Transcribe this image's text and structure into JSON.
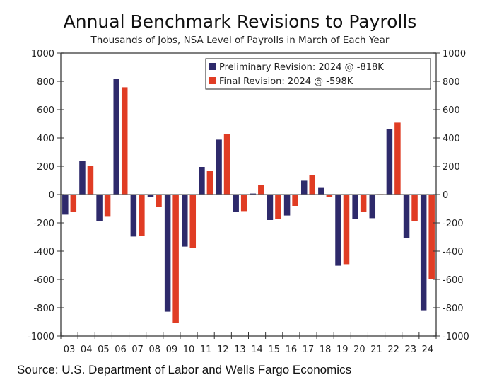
{
  "chart_data": {
    "type": "bar",
    "title": "Annual Benchmark Revisions to Payrolls",
    "subtitle": "Thousands of Jobs, NSA Level of Payrolls in March of Each Year",
    "xlabel": "",
    "ylabel": "",
    "ylim": [
      -1000,
      1000
    ],
    "yticks": [
      1000,
      800,
      600,
      400,
      200,
      0,
      -200,
      -400,
      -600,
      -800,
      -1000
    ],
    "ytick_labels": [
      "1000",
      "800",
      "600",
      "400",
      "200",
      "0",
      "-200",
      "-400",
      "-600",
      "-800",
      "-1000"
    ],
    "dual_y_axis": true,
    "grid": false,
    "legend_position": "top-right",
    "categories": [
      "03",
      "04",
      "05",
      "06",
      "07",
      "08",
      "09",
      "10",
      "11",
      "12",
      "13",
      "14",
      "15",
      "16",
      "17",
      "18",
      "19",
      "20",
      "21",
      "22",
      "23",
      "24"
    ],
    "series": [
      {
        "name": "Preliminary Revision: 2024 @ -818K",
        "color": "#2e2a6b",
        "values": [
          -142,
          238,
          -190,
          815,
          -297,
          -18,
          -828,
          -368,
          195,
          388,
          -122,
          7,
          -180,
          -148,
          98,
          47,
          -503,
          -173,
          -167,
          465,
          -308,
          -818
        ]
      },
      {
        "name": "Final Revision: 2024 @ -598K",
        "color": "#e03c24",
        "values": [
          -122,
          205,
          -157,
          758,
          -293,
          -90,
          -907,
          -380,
          165,
          427,
          -117,
          68,
          -172,
          -80,
          137,
          -17,
          -492,
          -120,
          3,
          508,
          -188,
          -598
        ]
      }
    ],
    "source": "Source: U.S. Department of Labor and Wells Fargo Economics"
  }
}
